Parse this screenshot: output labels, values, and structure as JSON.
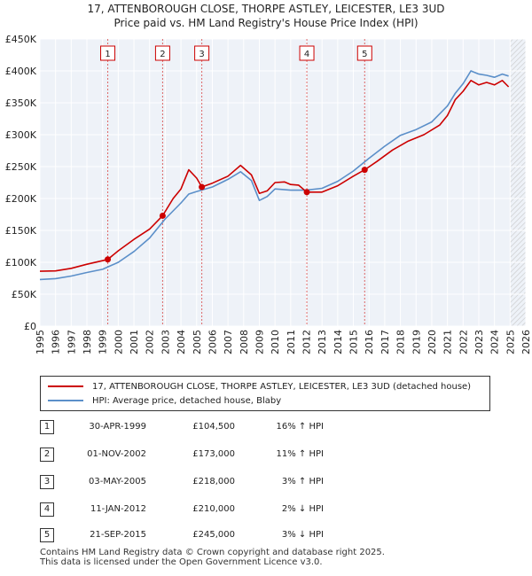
{
  "chart_data": {
    "type": "line",
    "title": "17, ATTENBOROUGH CLOSE, THORPE ASTLEY, LEICESTER, LE3 3UD",
    "subtitle": "Price paid vs. HM Land Registry's House Price Index (HPI)",
    "x_ticks": [
      "1995",
      "1996",
      "1997",
      "1998",
      "1999",
      "2000",
      "2001",
      "2002",
      "2003",
      "2004",
      "2005",
      "2006",
      "2007",
      "2008",
      "2009",
      "2010",
      "2011",
      "2012",
      "2013",
      "2014",
      "2015",
      "2016",
      "2017",
      "2018",
      "2019",
      "2020",
      "2021",
      "2022",
      "2023",
      "2024",
      "2025",
      "2026"
    ],
    "y_ticks": [
      "£0",
      "£50K",
      "£100K",
      "£150K",
      "£200K",
      "£250K",
      "£300K",
      "£350K",
      "£400K",
      "£450K"
    ],
    "xlim": [
      1995,
      2026
    ],
    "ylim": [
      0,
      450000
    ],
    "series": [
      {
        "name": "17, ATTENBOROUGH CLOSE, THORPE ASTLEY, LEICESTER, LE3 3UD (detached house)",
        "color": "#cc0000",
        "points": [
          [
            1995.0,
            86000
          ],
          [
            1996.0,
            86500
          ],
          [
            1997.0,
            90500
          ],
          [
            1998.0,
            97000
          ],
          [
            1999.33,
            104500
          ],
          [
            2000.0,
            118000
          ],
          [
            2001.0,
            136000
          ],
          [
            2002.0,
            152000
          ],
          [
            2002.83,
            173000
          ],
          [
            2003.5,
            200000
          ],
          [
            2004.0,
            215000
          ],
          [
            2004.5,
            245000
          ],
          [
            2005.0,
            232000
          ],
          [
            2005.33,
            218000
          ],
          [
            2006.0,
            224000
          ],
          [
            2007.0,
            235000
          ],
          [
            2007.8,
            252000
          ],
          [
            2008.5,
            237000
          ],
          [
            2009.0,
            208000
          ],
          [
            2009.5,
            212000
          ],
          [
            2010.0,
            225000
          ],
          [
            2010.6,
            226000
          ],
          [
            2011.0,
            222000
          ],
          [
            2011.5,
            221000
          ],
          [
            2012.03,
            210000
          ],
          [
            2013.0,
            210000
          ],
          [
            2014.0,
            220000
          ],
          [
            2015.0,
            235000
          ],
          [
            2015.72,
            245000
          ],
          [
            2016.5,
            258000
          ],
          [
            2017.5,
            276000
          ],
          [
            2018.5,
            290000
          ],
          [
            2019.5,
            300000
          ],
          [
            2020.5,
            315000
          ],
          [
            2021.0,
            330000
          ],
          [
            2021.5,
            355000
          ],
          [
            2022.0,
            368000
          ],
          [
            2022.5,
            385000
          ],
          [
            2023.0,
            378000
          ],
          [
            2023.5,
            382000
          ],
          [
            2024.0,
            378000
          ],
          [
            2024.5,
            385000
          ],
          [
            2024.9,
            375000
          ]
        ]
      },
      {
        "name": "HPI: Average price, detached house, Blaby",
        "color": "#5b8fc9",
        "points": [
          [
            1995.0,
            73000
          ],
          [
            1996.0,
            74500
          ],
          [
            1997.0,
            78500
          ],
          [
            1998.0,
            84000
          ],
          [
            1999.0,
            89000
          ],
          [
            2000.0,
            100000
          ],
          [
            2001.0,
            117000
          ],
          [
            2002.0,
            138000
          ],
          [
            2003.0,
            168000
          ],
          [
            2004.0,
            193000
          ],
          [
            2004.5,
            207000
          ],
          [
            2005.0,
            211000
          ],
          [
            2006.0,
            218000
          ],
          [
            2007.0,
            230000
          ],
          [
            2007.8,
            242000
          ],
          [
            2008.5,
            228000
          ],
          [
            2009.0,
            197000
          ],
          [
            2009.5,
            203000
          ],
          [
            2010.0,
            215000
          ],
          [
            2011.0,
            213000
          ],
          [
            2012.0,
            213000
          ],
          [
            2013.0,
            216000
          ],
          [
            2014.0,
            227000
          ],
          [
            2015.0,
            243000
          ],
          [
            2016.0,
            263000
          ],
          [
            2017.0,
            282000
          ],
          [
            2018.0,
            299000
          ],
          [
            2019.0,
            308000
          ],
          [
            2020.0,
            320000
          ],
          [
            2021.0,
            345000
          ],
          [
            2021.5,
            365000
          ],
          [
            2022.0,
            380000
          ],
          [
            2022.5,
            400000
          ],
          [
            2023.0,
            395000
          ],
          [
            2023.5,
            393000
          ],
          [
            2024.0,
            390000
          ],
          [
            2024.5,
            395000
          ],
          [
            2024.9,
            392000
          ]
        ]
      }
    ],
    "sales": [
      {
        "num": "1",
        "x": 1999.33,
        "y": 104500
      },
      {
        "num": "2",
        "x": 2002.83,
        "y": 173000
      },
      {
        "num": "3",
        "x": 2005.33,
        "y": 218000
      },
      {
        "num": "4",
        "x": 2012.03,
        "y": 210000
      },
      {
        "num": "5",
        "x": 2015.72,
        "y": 245000
      }
    ],
    "forecast_start": 2025.0,
    "grid": true
  },
  "legend": {
    "red_label": "17, ATTENBOROUGH CLOSE, THORPE ASTLEY, LEICESTER, LE3 3UD (detached house)",
    "blue_label": "HPI: Average price, detached house, Blaby"
  },
  "transactions": [
    {
      "num": "1",
      "date": "30-APR-1999",
      "price": "£104,500",
      "hpi": "16% ↑ HPI"
    },
    {
      "num": "2",
      "date": "01-NOV-2002",
      "price": "£173,000",
      "hpi": "11% ↑ HPI"
    },
    {
      "num": "3",
      "date": "03-MAY-2005",
      "price": "£218,000",
      "hpi": "3% ↑ HPI"
    },
    {
      "num": "4",
      "date": "11-JAN-2012",
      "price": "£210,000",
      "hpi": "2% ↓ HPI"
    },
    {
      "num": "5",
      "date": "21-SEP-2015",
      "price": "£245,000",
      "hpi": "3% ↓ HPI"
    }
  ],
  "footer": {
    "line1": "Contains HM Land Registry data © Crown copyright and database right 2025.",
    "line2": "This data is licensed under the Open Government Licence v3.0."
  }
}
